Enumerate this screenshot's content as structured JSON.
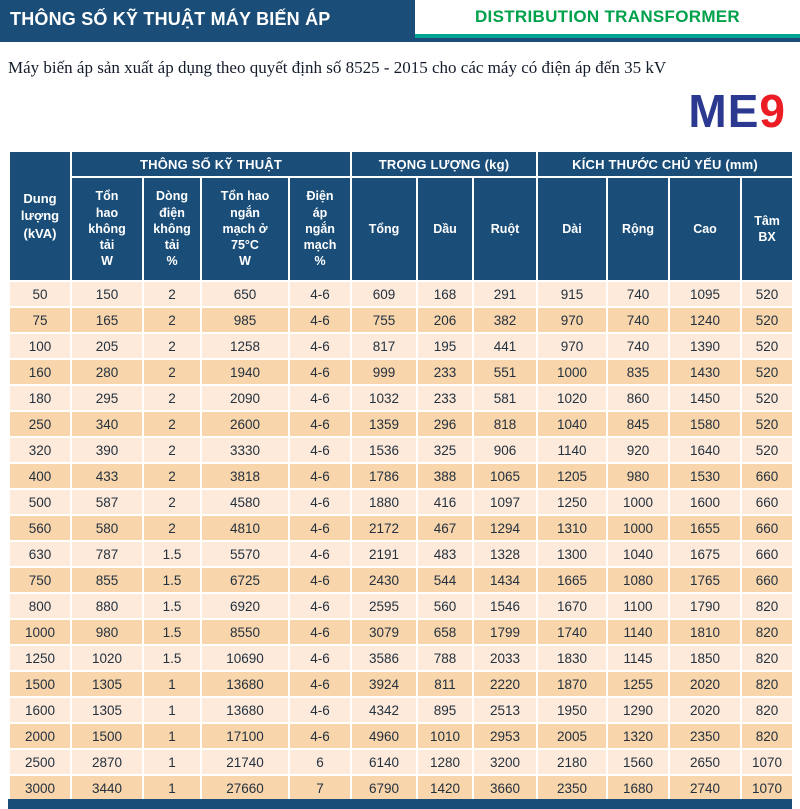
{
  "banner": {
    "title": "THÔNG SỐ KỸ THUẬT MÁY BIẾN ÁP",
    "subtitle": "DISTRIBUTION TRANSFORMER"
  },
  "note": "Máy biến áp sản xuất áp dụng theo quyết định số 8525 - 2015 cho các máy có điện áp đến 35 kV",
  "logo": {
    "blue_part": "ME",
    "red_part": "9"
  },
  "colors": {
    "header_navy": "#1a4e78",
    "banner_green_text": "#00a14b",
    "banner_teal_line": "#00a394",
    "logo_blue": "#2b3990",
    "logo_red": "#ec1c24",
    "row_light": "#fdeada",
    "row_dark": "#f8d5ab"
  },
  "table": {
    "capacity_header": "Dung\nlượng\n(kVA)",
    "groups": [
      {
        "label": "THÔNG SỐ KỸ THUẬT",
        "cols": [
          "Tổn\nhao\nkhông\ntải\nW",
          "Dòng\nđiện\nkhông\ntải\n%",
          "Tổn hao\nngắn\nmạch ở\n75°C\nW",
          "Điện\náp\nngắn\nmạch\n%"
        ]
      },
      {
        "label": "TRỌNG LƯỢNG (kg)",
        "cols": [
          "Tổng",
          "Dầu",
          "Ruột"
        ]
      },
      {
        "label": "KÍCH THƯỚC CHỦ YẾU (mm)",
        "cols": [
          "Dài",
          "Rộng",
          "Cao",
          "Tâm\nBX"
        ]
      }
    ],
    "rows": [
      [
        "50",
        "150",
        "2",
        "650",
        "4-6",
        "609",
        "168",
        "291",
        "915",
        "740",
        "1095",
        "520"
      ],
      [
        "75",
        "165",
        "2",
        "985",
        "4-6",
        "755",
        "206",
        "382",
        "970",
        "740",
        "1240",
        "520"
      ],
      [
        "100",
        "205",
        "2",
        "1258",
        "4-6",
        "817",
        "195",
        "441",
        "970",
        "740",
        "1390",
        "520"
      ],
      [
        "160",
        "280",
        "2",
        "1940",
        "4-6",
        "999",
        "233",
        "551",
        "1000",
        "835",
        "1430",
        "520"
      ],
      [
        "180",
        "295",
        "2",
        "2090",
        "4-6",
        "1032",
        "233",
        "581",
        "1020",
        "860",
        "1450",
        "520"
      ],
      [
        "250",
        "340",
        "2",
        "2600",
        "4-6",
        "1359",
        "296",
        "818",
        "1040",
        "845",
        "1580",
        "520"
      ],
      [
        "320",
        "390",
        "2",
        "3330",
        "4-6",
        "1536",
        "325",
        "906",
        "1140",
        "920",
        "1640",
        "520"
      ],
      [
        "400",
        "433",
        "2",
        "3818",
        "4-6",
        "1786",
        "388",
        "1065",
        "1205",
        "980",
        "1530",
        "660"
      ],
      [
        "500",
        "587",
        "2",
        "4580",
        "4-6",
        "1880",
        "416",
        "1097",
        "1250",
        "1000",
        "1600",
        "660"
      ],
      [
        "560",
        "580",
        "2",
        "4810",
        "4-6",
        "2172",
        "467",
        "1294",
        "1310",
        "1000",
        "1655",
        "660"
      ],
      [
        "630",
        "787",
        "1.5",
        "5570",
        "4-6",
        "2191",
        "483",
        "1328",
        "1300",
        "1040",
        "1675",
        "660"
      ],
      [
        "750",
        "855",
        "1.5",
        "6725",
        "4-6",
        "2430",
        "544",
        "1434",
        "1665",
        "1080",
        "1765",
        "660"
      ],
      [
        "800",
        "880",
        "1.5",
        "6920",
        "4-6",
        "2595",
        "560",
        "1546",
        "1670",
        "1100",
        "1790",
        "820"
      ],
      [
        "1000",
        "980",
        "1.5",
        "8550",
        "4-6",
        "3079",
        "658",
        "1799",
        "1740",
        "1140",
        "1810",
        "820"
      ],
      [
        "1250",
        "1020",
        "1.5",
        "10690",
        "4-6",
        "3586",
        "788",
        "2033",
        "1830",
        "1145",
        "1850",
        "820"
      ],
      [
        "1500",
        "1305",
        "1",
        "13680",
        "4-6",
        "3924",
        "811",
        "2220",
        "1870",
        "1255",
        "2020",
        "820"
      ],
      [
        "1600",
        "1305",
        "1",
        "13680",
        "4-6",
        "4342",
        "895",
        "2513",
        "1950",
        "1290",
        "2020",
        "820"
      ],
      [
        "2000",
        "1500",
        "1",
        "17100",
        "4-6",
        "4960",
        "1010",
        "2953",
        "2005",
        "1320",
        "2350",
        "820"
      ],
      [
        "2500",
        "2870",
        "1",
        "21740",
        "6",
        "6140",
        "1280",
        "3200",
        "2180",
        "1560",
        "2650",
        "1070"
      ],
      [
        "3000",
        "3440",
        "1",
        "27660",
        "7",
        "6790",
        "1420",
        "3660",
        "2350",
        "1680",
        "2740",
        "1070"
      ]
    ]
  }
}
